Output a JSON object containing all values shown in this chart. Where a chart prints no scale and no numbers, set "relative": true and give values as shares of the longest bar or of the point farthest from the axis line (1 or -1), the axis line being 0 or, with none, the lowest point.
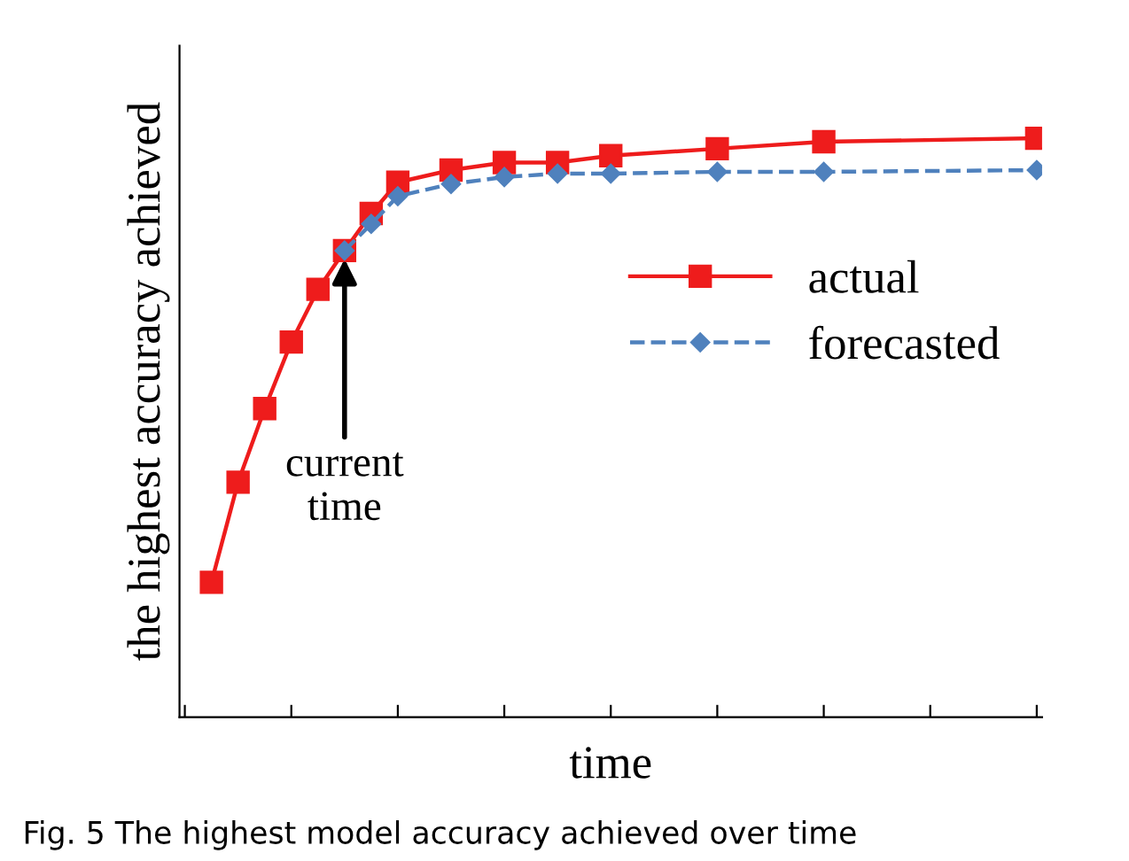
{
  "chart_data": {
    "type": "line",
    "relative": true,
    "xlabel": "time",
    "ylabel": "the highest accuracy achieved",
    "legend": "right",
    "grid": false,
    "categories": [
      null,
      null,
      null,
      null,
      null,
      null,
      null,
      null,
      null,
      null,
      null,
      null,
      null,
      null,
      null,
      null,
      null,
      null,
      null,
      null,
      null,
      null,
      null,
      null,
      null,
      null,
      null,
      null,
      null,
      null,
      null,
      null,
      null
    ],
    "series": [
      {
        "name": "actual",
        "color": "#ee1c1c",
        "marker": "square",
        "line_style": "solid",
        "values": [
          null,
          0.233,
          0.406,
          0.533,
          0.648,
          0.739,
          0.806,
          0.87,
          0.924,
          null,
          0.945,
          null,
          0.958,
          null,
          0.958,
          null,
          0.97,
          null,
          null,
          null,
          0.982,
          null,
          null,
          null,
          0.994,
          null,
          null,
          null,
          null,
          null,
          null,
          null,
          1
        ]
      },
      {
        "name": "forecasted",
        "color": "#4f81bd",
        "marker": "diamond",
        "line_style": "dashed",
        "values": [
          null,
          null,
          null,
          null,
          null,
          null,
          0.806,
          0.852,
          0.9,
          null,
          0.921,
          null,
          0.933,
          null,
          0.939,
          null,
          0.939,
          null,
          null,
          null,
          0.942,
          null,
          null,
          null,
          0.942,
          null,
          null,
          null,
          null,
          null,
          null,
          null,
          0.945
        ]
      }
    ],
    "annotations": [
      {
        "text": "current time",
        "y": 0.8
      },
      "Fig. 5 The highest model accuracy achieved over time"
    ]
  }
}
